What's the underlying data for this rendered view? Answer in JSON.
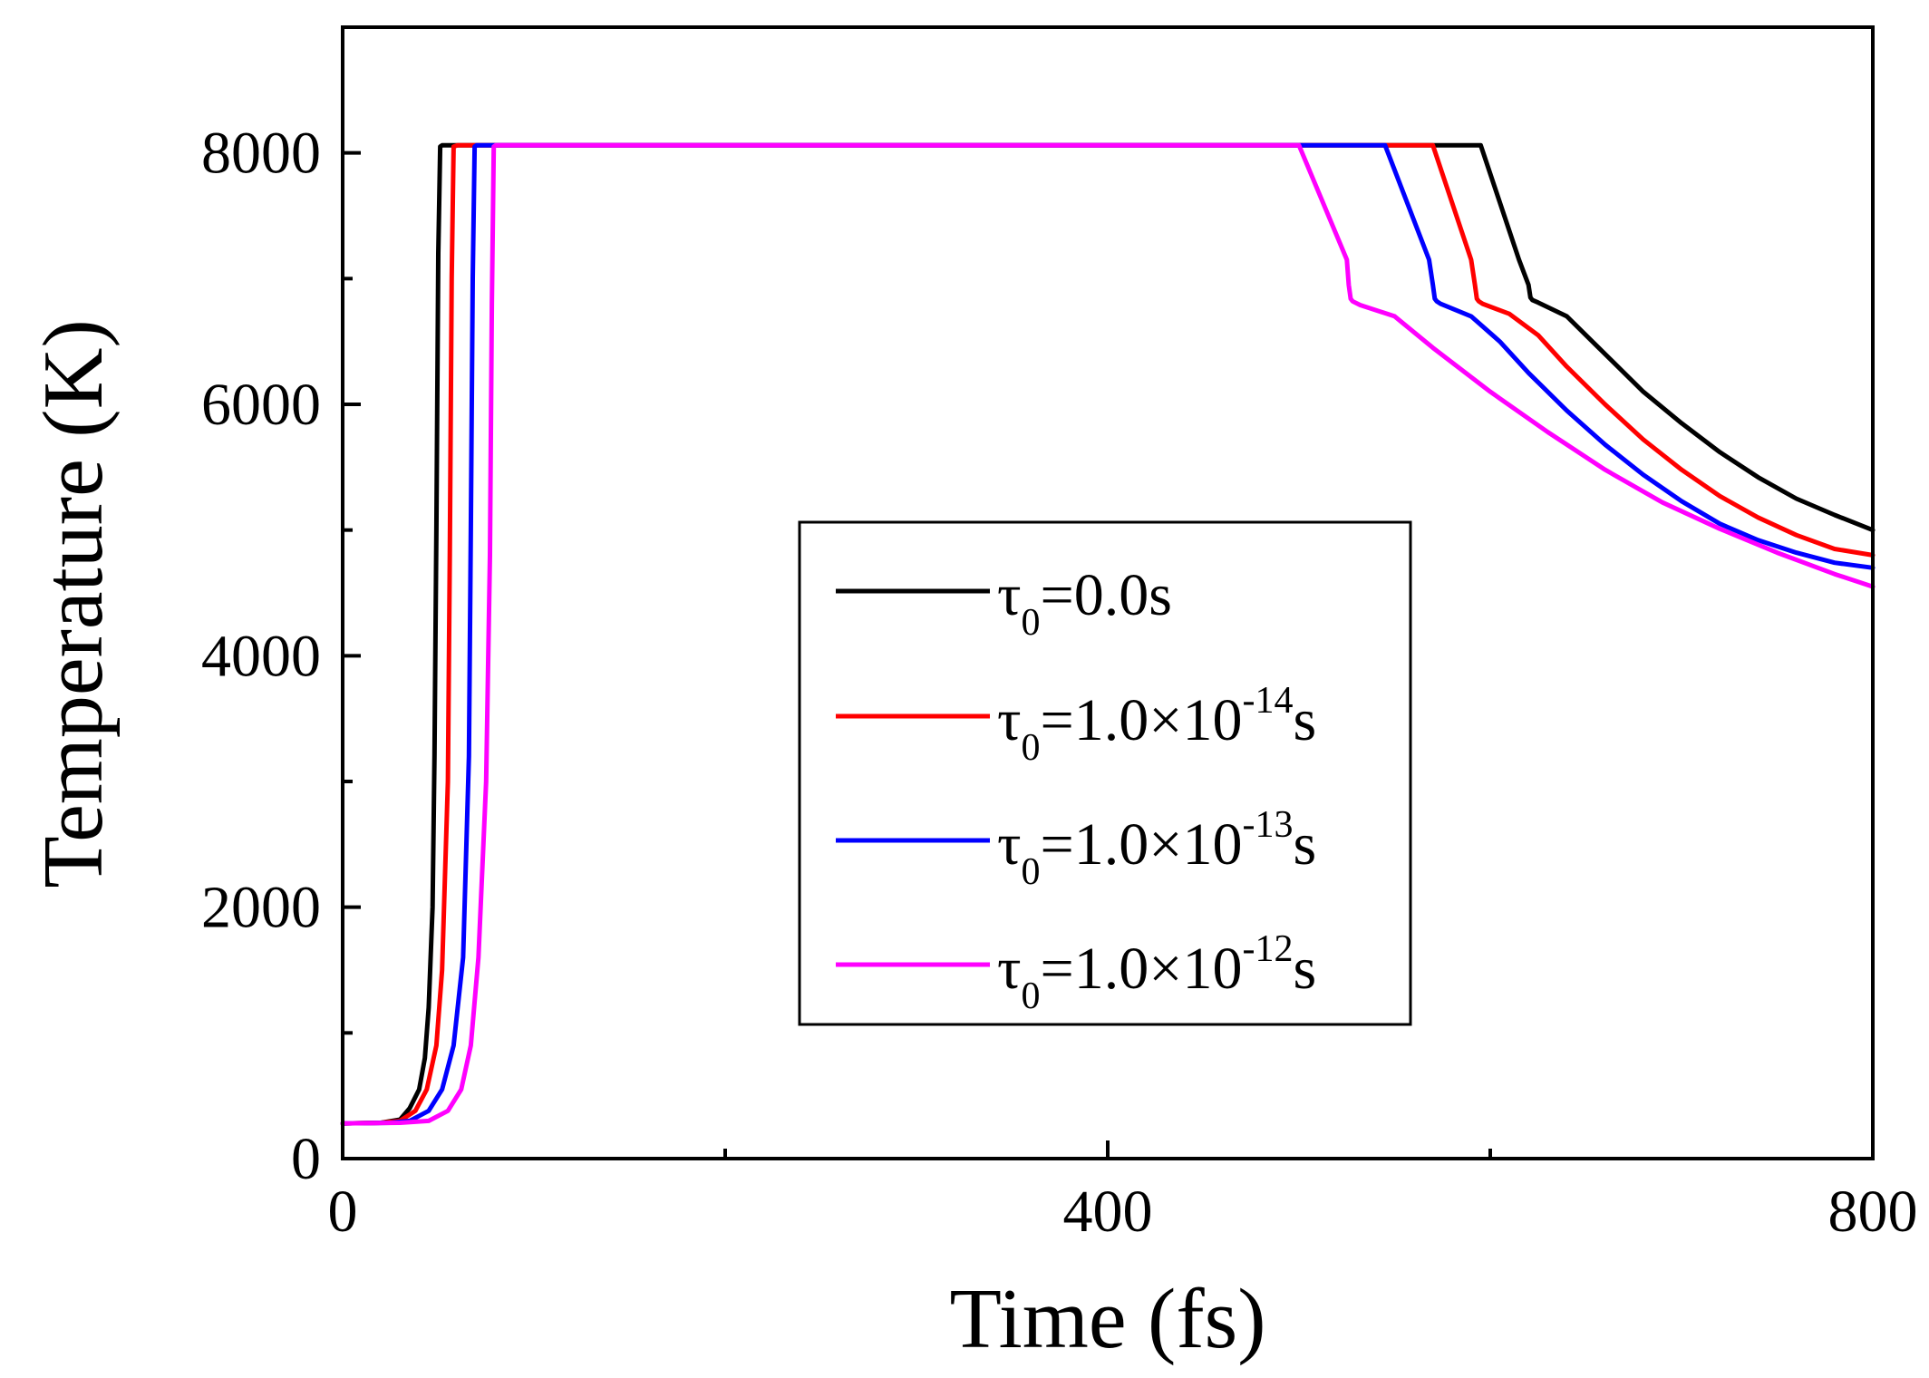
{
  "chart_data": {
    "type": "line",
    "title": "",
    "xlabel": "Time (fs)",
    "ylabel": "Temperature (K)",
    "xlim": [
      0,
      800
    ],
    "ylim": [
      0,
      9000
    ],
    "xticks": [
      0,
      400,
      800
    ],
    "xticks_minor": [
      200,
      600
    ],
    "yticks": [
      0,
      2000,
      4000,
      6000,
      8000
    ],
    "yticks_minor": [
      1000,
      3000,
      5000,
      7000
    ],
    "x_tick_labels": [
      "0",
      "400",
      "800"
    ],
    "y_tick_labels": [
      "0",
      "2000",
      "4000",
      "6000",
      "8000"
    ],
    "grid": false,
    "legend_position": "center",
    "series": [
      {
        "name": "τ0=0.0s",
        "legend": {
          "sym": "τ",
          "sub": "0",
          "eq": "=0.0s",
          "sup": "",
          "tail": ""
        },
        "color": "#000000",
        "x": [
          0,
          20,
          30,
          35,
          40,
          43,
          45,
          47,
          48,
          49,
          50,
          51,
          52,
          55,
          70,
          120,
          200,
          300,
          400,
          500,
          560,
          595,
          615,
          620,
          621,
          622,
          625,
          640,
          660,
          680,
          700,
          720,
          740,
          760,
          780,
          800
        ],
        "y": [
          280,
          285,
          310,
          400,
          550,
          800,
          1200,
          2000,
          3200,
          5000,
          7200,
          8050,
          8060,
          8060,
          8060,
          8060,
          8060,
          8060,
          8060,
          8060,
          8060,
          8060,
          7150,
          6950,
          6850,
          6830,
          6810,
          6700,
          6400,
          6100,
          5850,
          5620,
          5420,
          5250,
          5120,
          5000
        ]
      },
      {
        "name": "τ0=1.0×10-14s",
        "legend": {
          "sym": "τ",
          "sub": "0",
          "eq": "=1.0×10",
          "sup": "-14",
          "tail": "s"
        },
        "color": "#ff0000",
        "x": [
          0,
          20,
          30,
          38,
          44,
          49,
          52,
          55,
          56,
          57,
          58,
          60,
          70,
          120,
          200,
          300,
          400,
          500,
          570,
          590,
          592,
          593,
          594,
          596,
          610,
          625,
          640,
          660,
          680,
          700,
          720,
          740,
          760,
          780,
          800
        ],
        "y": [
          280,
          285,
          300,
          380,
          550,
          900,
          1500,
          3000,
          4800,
          7000,
          8050,
          8060,
          8060,
          8060,
          8060,
          8060,
          8060,
          8060,
          8060,
          7150,
          6950,
          6840,
          6820,
          6800,
          6720,
          6550,
          6300,
          6000,
          5720,
          5480,
          5270,
          5100,
          4960,
          4850,
          4800
        ]
      },
      {
        "name": "τ0=1.0×10-13s",
        "legend": {
          "sym": "τ",
          "sub": "0",
          "eq": "=1.0×10",
          "sup": "-13",
          "tail": "s"
        },
        "color": "#0000ff",
        "x": [
          0,
          25,
          35,
          45,
          52,
          58,
          63,
          66,
          67,
          68,
          69,
          70,
          80,
          120,
          200,
          300,
          400,
          500,
          545,
          568,
          570,
          571,
          572,
          574,
          590,
          605,
          620,
          640,
          660,
          680,
          700,
          720,
          740,
          760,
          780,
          800
        ],
        "y": [
          280,
          285,
          300,
          380,
          550,
          900,
          1600,
          3200,
          5000,
          7000,
          8050,
          8060,
          8060,
          8060,
          8060,
          8060,
          8060,
          8060,
          8060,
          7150,
          6950,
          6840,
          6820,
          6800,
          6700,
          6500,
          6250,
          5950,
          5680,
          5440,
          5230,
          5050,
          4920,
          4820,
          4740,
          4700
        ]
      },
      {
        "name": "τ0=1.0×10-12s",
        "legend": {
          "sym": "τ",
          "sub": "0",
          "eq": "=1.0×10",
          "sup": "-12",
          "tail": "s"
        },
        "color": "#ff00ff",
        "x": [
          0,
          30,
          45,
          55,
          62,
          67,
          71,
          75,
          77,
          78,
          79,
          80,
          90,
          120,
          200,
          300,
          400,
          480,
          500,
          525,
          526,
          527,
          528,
          532,
          550,
          570,
          600,
          630,
          660,
          690,
          720,
          750,
          780,
          800
        ],
        "y": [
          280,
          285,
          300,
          380,
          550,
          900,
          1600,
          3000,
          4800,
          6800,
          8050,
          8060,
          8060,
          8060,
          8060,
          8060,
          8060,
          8060,
          8060,
          7150,
          6950,
          6840,
          6820,
          6790,
          6700,
          6450,
          6100,
          5780,
          5480,
          5220,
          5010,
          4820,
          4650,
          4550
        ]
      }
    ]
  }
}
